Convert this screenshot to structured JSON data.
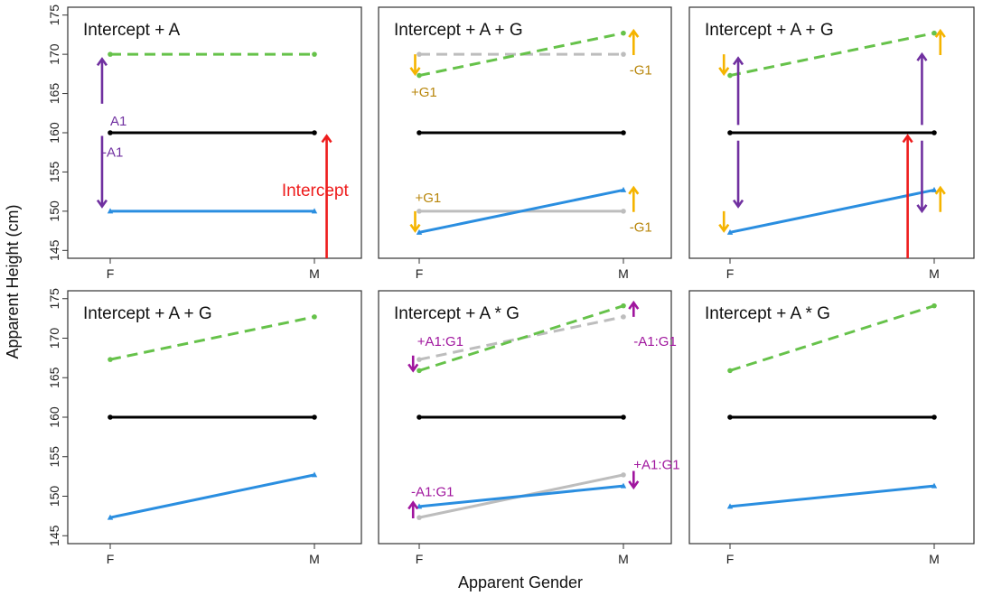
{
  "figure": {
    "ylabel": "Apparent Height (cm)",
    "xlabel": "Apparent Gender"
  },
  "colors": {
    "green": "#66c24a",
    "black": "#000000",
    "blue": "#2a8ee0",
    "grey": "#bdbdbd",
    "purple": "#7030a0",
    "red": "#ee1c1c",
    "orange": "#f5b400",
    "orange_text": "#b8860b",
    "magenta": "#a0169e"
  },
  "chart_data": [
    {
      "type": "line",
      "title": "Intercept + A",
      "x": [
        "F",
        "M"
      ],
      "ylim": [
        144,
        176
      ],
      "yticks": [
        145,
        150,
        155,
        160,
        165,
        170,
        175
      ],
      "series": [
        {
          "values": [
            170,
            170
          ],
          "color": "green",
          "dash": true
        },
        {
          "values": [
            160,
            160
          ],
          "color": "black"
        },
        {
          "values": [
            150,
            150
          ],
          "color": "blue"
        }
      ],
      "arrows": [
        {
          "x": -0.04,
          "from": 163.7,
          "to": 169.4,
          "color": "purple"
        },
        {
          "x": -0.04,
          "from": 159.6,
          "to": 150.6,
          "color": "purple"
        },
        {
          "x": 1.06,
          "from": 144,
          "to": 159.6,
          "color": "red"
        }
      ],
      "annotations": [
        {
          "text": "A1",
          "x": 0.0,
          "y": 161.5,
          "color": "purple"
        },
        {
          "text": "-A1",
          "x": -0.04,
          "y": 157.5,
          "color": "purple"
        },
        {
          "text": "Intercept",
          "x": 0.84,
          "y": 152.5,
          "color": "red"
        }
      ]
    },
    {
      "type": "line",
      "title": "Intercept + A + G",
      "x": [
        "F",
        "M"
      ],
      "ylim": [
        144,
        176
      ],
      "yticks": [
        145,
        150,
        155,
        160,
        165,
        170,
        175
      ],
      "series": [
        {
          "values": [
            170,
            170
          ],
          "color": "grey",
          "dash": true
        },
        {
          "values": [
            167.3,
            172.7
          ],
          "color": "green",
          "dash": true
        },
        {
          "values": [
            160,
            160
          ],
          "color": "black"
        },
        {
          "values": [
            150,
            150
          ],
          "color": "grey"
        },
        {
          "values": [
            147.3,
            152.7
          ],
          "color": "blue"
        }
      ],
      "arrows": [
        {
          "x": -0.02,
          "from": 170,
          "to": 167.5,
          "color": "orange"
        },
        {
          "x": 1.05,
          "from": 169.9,
          "to": 173,
          "color": "orange"
        },
        {
          "x": -0.02,
          "from": 150,
          "to": 147.5,
          "color": "orange"
        },
        {
          "x": 1.05,
          "from": 149.9,
          "to": 153,
          "color": "orange"
        }
      ],
      "annotations": [
        {
          "text": "+G1",
          "x": -0.04,
          "y": 165.2,
          "color": "orange_text"
        },
        {
          "text": "-G1",
          "x": 1.03,
          "y": 168.0,
          "color": "orange_text"
        },
        {
          "text": "+G1",
          "x": -0.02,
          "y": 151.7,
          "color": "orange_text"
        },
        {
          "text": "-G1",
          "x": 1.03,
          "y": 148.0,
          "color": "orange_text"
        }
      ]
    },
    {
      "type": "line",
      "title": "Intercept + A + G",
      "x": [
        "F",
        "M"
      ],
      "ylim": [
        144,
        176
      ],
      "yticks": [
        145,
        150,
        155,
        160,
        165,
        170,
        175
      ],
      "series": [
        {
          "values": [
            167.3,
            172.7
          ],
          "color": "green",
          "dash": true
        },
        {
          "values": [
            160,
            160
          ],
          "color": "black"
        },
        {
          "values": [
            147.3,
            152.7
          ],
          "color": "blue"
        }
      ],
      "arrows": [
        {
          "x": -0.03,
          "from": 170,
          "to": 167.5,
          "color": "orange"
        },
        {
          "x": 1.03,
          "from": 169.9,
          "to": 173,
          "color": "orange"
        },
        {
          "x": -0.03,
          "from": 150,
          "to": 147.5,
          "color": "orange"
        },
        {
          "x": 1.03,
          "from": 149.9,
          "to": 153,
          "color": "orange"
        },
        {
          "x": 0.04,
          "from": 161,
          "to": 169.5,
          "color": "purple"
        },
        {
          "x": 0.04,
          "from": 159,
          "to": 150.6,
          "color": "purple"
        },
        {
          "x": 0.94,
          "from": 161,
          "to": 170,
          "color": "purple"
        },
        {
          "x": 0.94,
          "from": 159,
          "to": 150,
          "color": "purple"
        },
        {
          "x": 0.87,
          "from": 144,
          "to": 159.6,
          "color": "red"
        }
      ],
      "annotations": []
    },
    {
      "type": "line",
      "title": "Intercept + A + G",
      "x": [
        "F",
        "M"
      ],
      "ylim": [
        144,
        176
      ],
      "yticks": [
        145,
        150,
        155,
        160,
        165,
        170,
        175
      ],
      "series": [
        {
          "values": [
            167.3,
            172.7
          ],
          "color": "green",
          "dash": true
        },
        {
          "values": [
            160,
            160
          ],
          "color": "black"
        },
        {
          "values": [
            147.3,
            152.7
          ],
          "color": "blue"
        }
      ],
      "arrows": [],
      "annotations": []
    },
    {
      "type": "line",
      "title": "Intercept + A * G",
      "x": [
        "F",
        "M"
      ],
      "ylim": [
        144,
        176
      ],
      "yticks": [
        145,
        150,
        155,
        160,
        165,
        170,
        175
      ],
      "series": [
        {
          "values": [
            167.3,
            172.7
          ],
          "color": "grey",
          "dash": true
        },
        {
          "values": [
            165.9,
            174.1
          ],
          "color": "green",
          "dash": true
        },
        {
          "values": [
            160,
            160
          ],
          "color": "black"
        },
        {
          "values": [
            147.3,
            152.7
          ],
          "color": "grey"
        },
        {
          "values": [
            148.7,
            151.3
          ],
          "color": "blue"
        }
      ],
      "arrows": [
        {
          "x": -0.03,
          "from": 167.8,
          "to": 165.9,
          "color": "magenta"
        },
        {
          "x": 1.05,
          "from": 172.7,
          "to": 174.5,
          "color": "magenta"
        },
        {
          "x": -0.03,
          "from": 147.2,
          "to": 149.2,
          "color": "magenta"
        },
        {
          "x": 1.05,
          "from": 153.2,
          "to": 151.1,
          "color": "magenta"
        }
      ],
      "annotations": [
        {
          "text": "+A1:G1",
          "x": -0.01,
          "y": 169.6,
          "color": "magenta"
        },
        {
          "text": "-A1:G1",
          "x": 1.05,
          "y": 169.6,
          "color": "magenta"
        },
        {
          "text": "-A1:G1",
          "x": -0.04,
          "y": 150.6,
          "color": "magenta"
        },
        {
          "text": "+A1:G1",
          "x": 1.05,
          "y": 154.0,
          "color": "magenta"
        }
      ]
    },
    {
      "type": "line",
      "title": "Intercept + A * G",
      "x": [
        "F",
        "M"
      ],
      "ylim": [
        144,
        176
      ],
      "yticks": [
        145,
        150,
        155,
        160,
        165,
        170,
        175
      ],
      "series": [
        {
          "values": [
            165.9,
            174.1
          ],
          "color": "green",
          "dash": true
        },
        {
          "values": [
            160,
            160
          ],
          "color": "black"
        },
        {
          "values": [
            148.7,
            151.3
          ],
          "color": "blue"
        }
      ],
      "arrows": [],
      "annotations": []
    }
  ]
}
